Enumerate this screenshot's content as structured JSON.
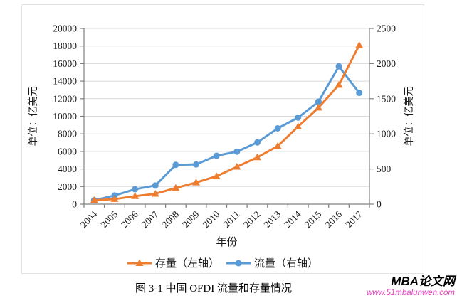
{
  "chart_data": {
    "type": "line",
    "categories": [
      "2004",
      "2005",
      "2006",
      "2007",
      "2008",
      "2009",
      "2010",
      "2011",
      "2012",
      "2013",
      "2014",
      "2015",
      "2016",
      "2017"
    ],
    "series": [
      {
        "name": "存量（左轴）",
        "axis": "left",
        "color": "#ED7D31",
        "marker": "triangle",
        "values": [
          448,
          572,
          906,
          1179,
          1840,
          2458,
          3172,
          4248,
          5319,
          6605,
          8826,
          10979,
          13574,
          18090
        ]
      },
      {
        "name": "流量（右轴）",
        "axis": "right",
        "color": "#5B9BD5",
        "marker": "circle",
        "values": [
          55,
          123,
          212,
          265,
          559,
          565,
          688,
          747,
          878,
          1078,
          1231,
          1457,
          1961,
          1583
        ]
      }
    ],
    "left_axis": {
      "title": "单位：亿美元",
      "min": 0,
      "max": 20000,
      "step": 2000
    },
    "right_axis": {
      "title": "单位：亿美元",
      "min": 0,
      "max": 2500,
      "step": 500
    },
    "x_axis": {
      "title": "年份"
    },
    "grid": true,
    "legend_position": "bottom",
    "colors": {
      "gridline": "#d9d9d9",
      "axis": "#808080",
      "tick_label": "#1a1a1a"
    }
  },
  "caption": "图 3-1  中国 OFDI 流量和存量情况",
  "watermark": {
    "site_name": "MBA论文网",
    "site_url": "www.51mbalunwen.com",
    "url_color": "#e83cc0"
  }
}
